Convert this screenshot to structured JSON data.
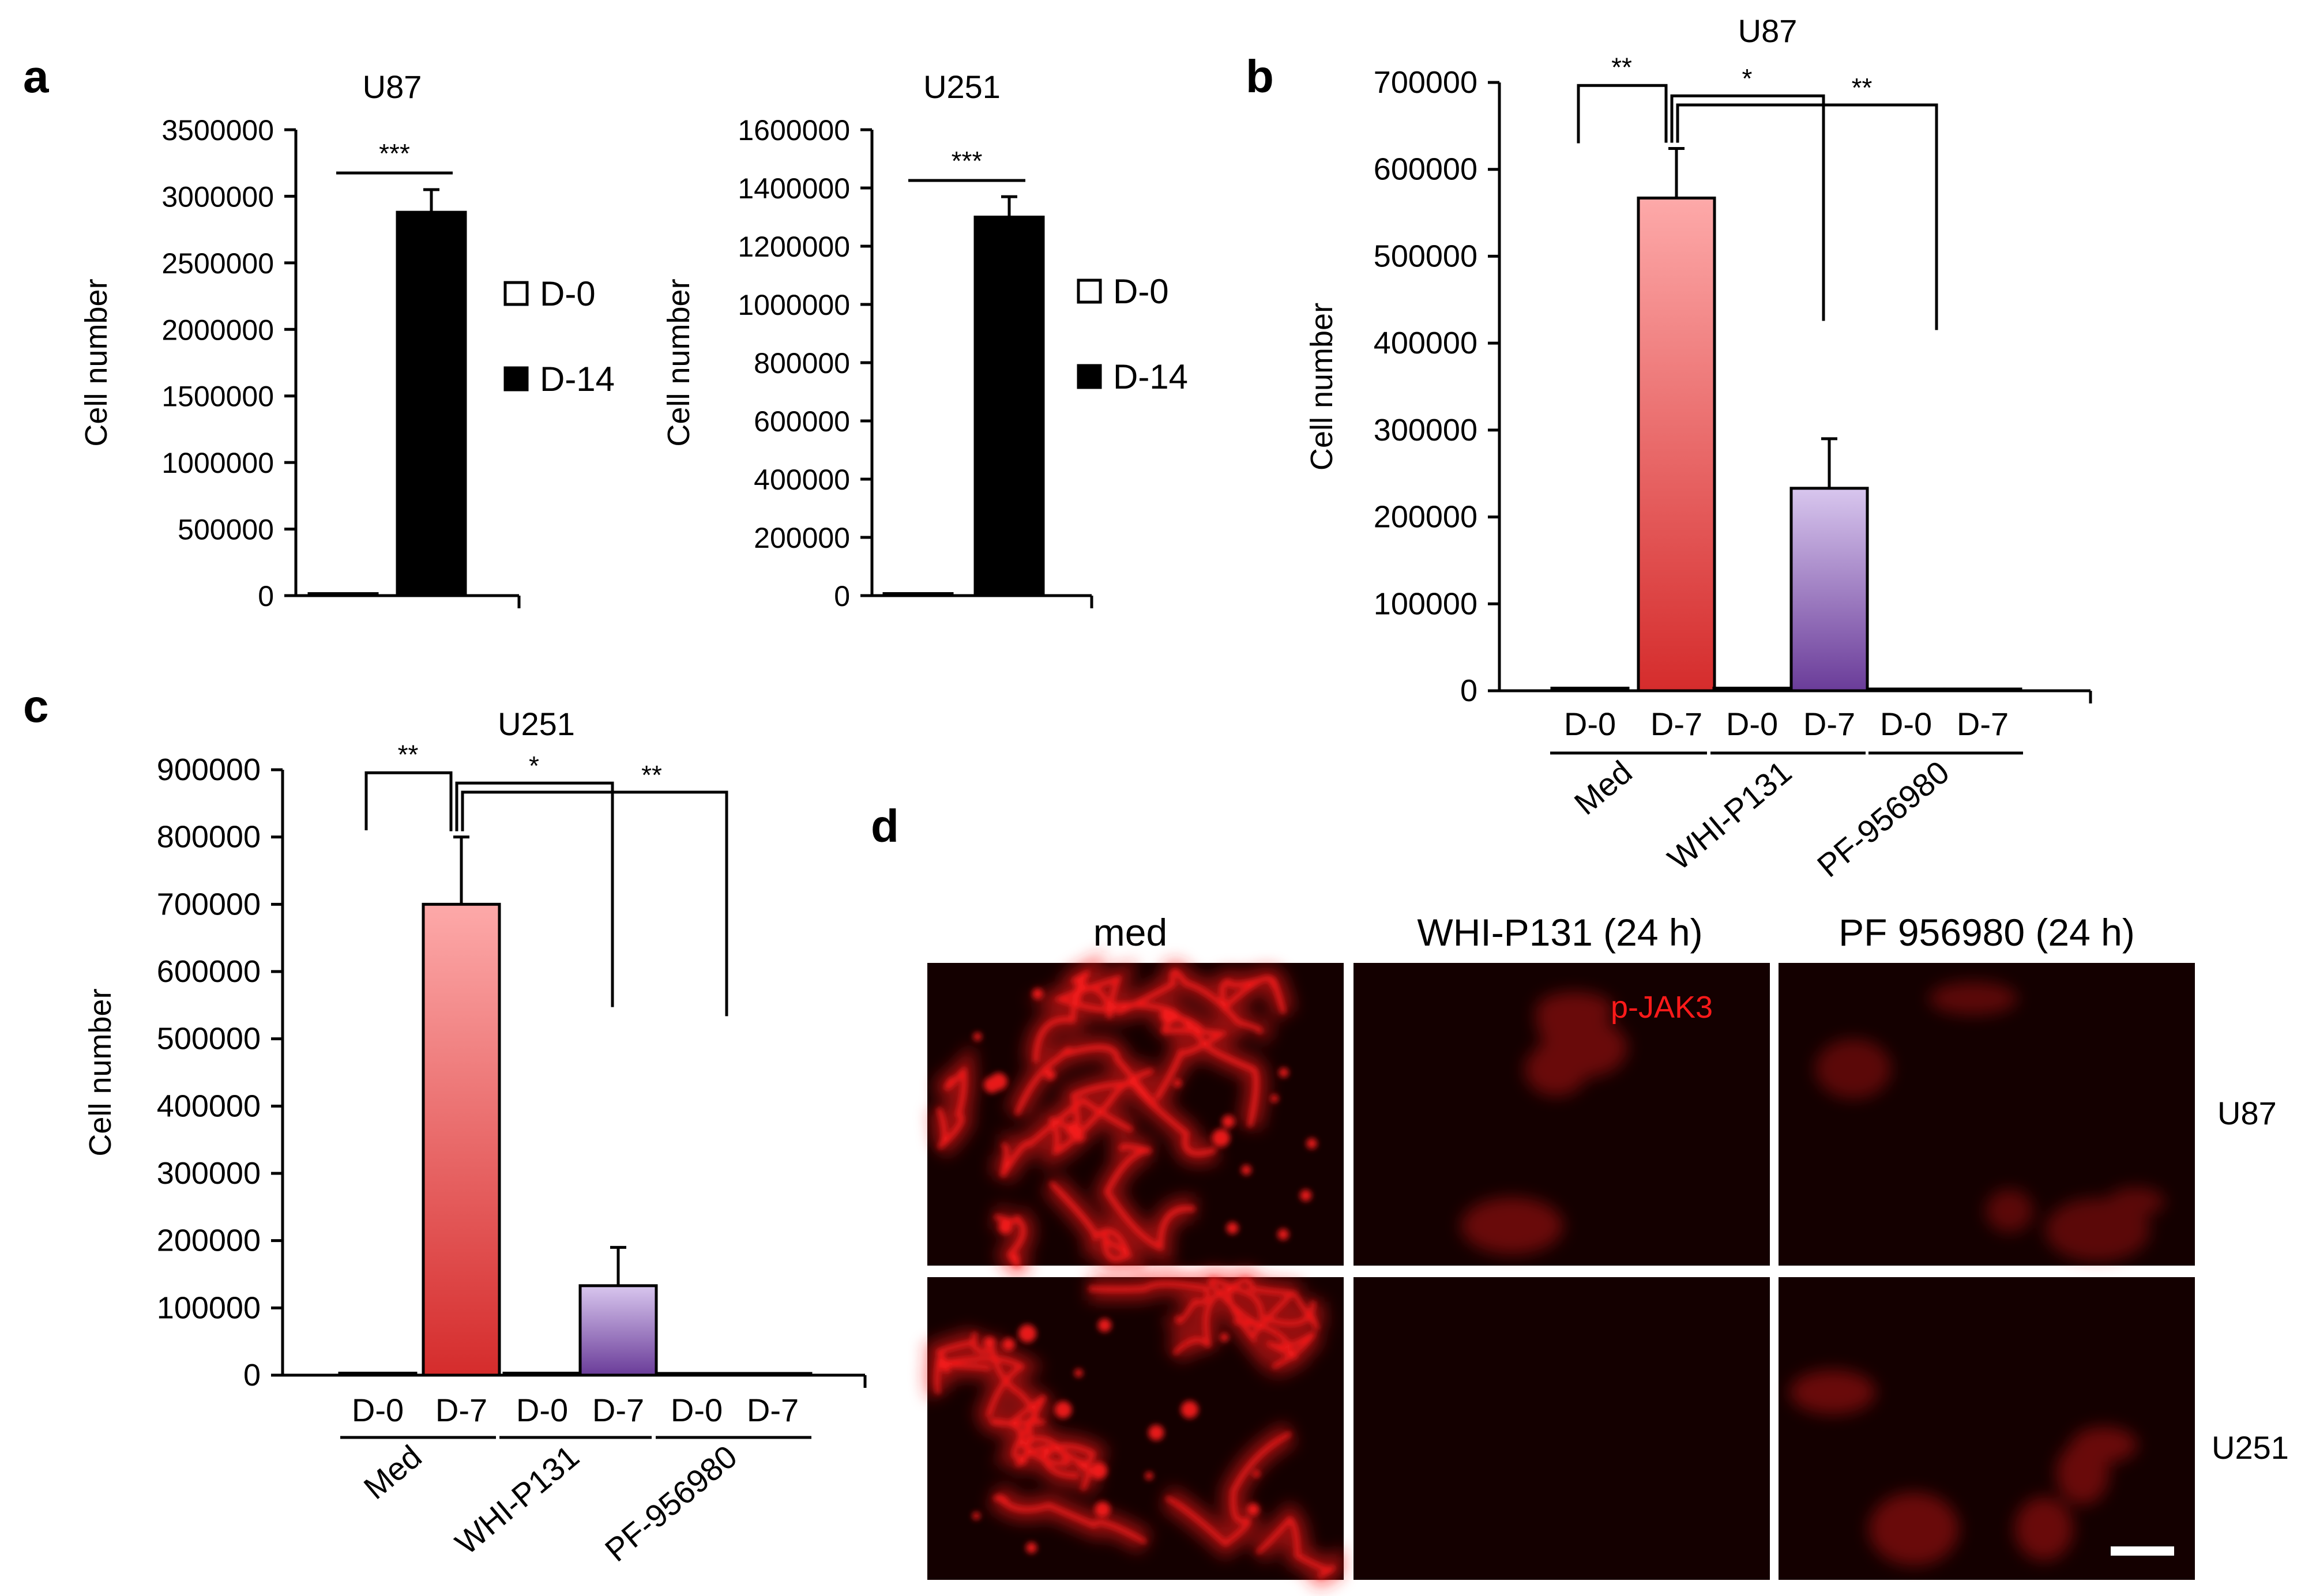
{
  "panel_letters": [
    "a",
    "b",
    "c",
    "d"
  ],
  "colors": {
    "axis": "#000000",
    "bar_black": "#000000",
    "med_top": "#fda9a9",
    "med_bottom": "#d52c2c",
    "whi_top": "#d8c6ee",
    "whi_bottom": "#6a3c99",
    "micro_bg": "#140000",
    "micro_signal": "#ff1a1a",
    "overlay_label": "#ff1a1a"
  },
  "chart_data": [
    {
      "id": "a1",
      "type": "bar",
      "title": "U87",
      "ylabel": "Cell number",
      "xlabel": "",
      "ylim": [
        0,
        3500000
      ],
      "yticks": [
        0,
        500000,
        1000000,
        1500000,
        2000000,
        2500000,
        3000000,
        3500000
      ],
      "ytick_labels": [
        "0",
        "500000",
        "1000000",
        "1500000",
        "2000000",
        "2500000",
        "3000000",
        "3500000"
      ],
      "categories": [
        "D-0",
        "D-14"
      ],
      "values": [
        15000,
        2880000
      ],
      "errors": [
        0,
        170000
      ],
      "legend": [
        "D-0",
        "D-14"
      ],
      "legend_position": "right",
      "significance": [
        {
          "from": 0,
          "to": 1,
          "label": "***"
        }
      ]
    },
    {
      "id": "a2",
      "type": "bar",
      "title": "U251",
      "ylabel": "Cell number",
      "xlabel": "",
      "ylim": [
        0,
        1600000
      ],
      "yticks": [
        0,
        200000,
        400000,
        600000,
        800000,
        1000000,
        1200000,
        1400000,
        1600000
      ],
      "ytick_labels": [
        "0",
        "200000",
        "400000",
        "600000",
        "800000",
        "1000000",
        "1200000",
        "1400000",
        "1600000"
      ],
      "categories": [
        "D-0",
        "D-14"
      ],
      "values": [
        7000,
        1300000
      ],
      "errors": [
        0,
        70000
      ],
      "legend": [
        "D-0",
        "D-14"
      ],
      "legend_position": "right",
      "significance": [
        {
          "from": 0,
          "to": 1,
          "label": "***"
        }
      ]
    },
    {
      "id": "b",
      "type": "bar",
      "title": "U87",
      "ylabel": "Cell number",
      "xlabel": "",
      "ylim": [
        0,
        700000
      ],
      "yticks": [
        0,
        100000,
        200000,
        300000,
        400000,
        500000,
        600000,
        700000
      ],
      "ytick_labels": [
        "0",
        "100000",
        "200000",
        "300000",
        "400000",
        "500000",
        "600000",
        "700000"
      ],
      "categories": [
        "D-0",
        "D-7",
        "D-0",
        "D-7",
        "D-0",
        "D-7"
      ],
      "groups": [
        "Med",
        "WHI-P131",
        "PF-956980"
      ],
      "values": [
        3000,
        567000,
        3000,
        233000,
        2000,
        2000
      ],
      "errors": [
        0,
        57000,
        0,
        57000,
        0,
        0
      ],
      "fills": [
        "none",
        "med",
        "none",
        "whi",
        "none",
        "none"
      ],
      "significance": [
        {
          "label": "**",
          "from": 0,
          "to": 1
        },
        {
          "label": "*",
          "from": 1,
          "to": 3
        },
        {
          "label": "**",
          "from": 1,
          "to": 5
        }
      ]
    },
    {
      "id": "c",
      "type": "bar",
      "title": "U251",
      "ylabel": "Cell number",
      "xlabel": "",
      "ylim": [
        0,
        900000
      ],
      "yticks": [
        0,
        100000,
        200000,
        300000,
        400000,
        500000,
        600000,
        700000,
        800000,
        900000
      ],
      "ytick_labels": [
        "0",
        "100000",
        "200000",
        "300000",
        "400000",
        "500000",
        "600000",
        "700000",
        "800000",
        "900000"
      ],
      "categories": [
        "D-0",
        "D-7",
        "D-0",
        "D-7",
        "D-0",
        "D-7"
      ],
      "groups": [
        "Med",
        "WHI-P131",
        "PF-956980"
      ],
      "values": [
        3000,
        700000,
        3000,
        133000,
        2000,
        2000
      ],
      "errors": [
        0,
        100000,
        0,
        57000,
        0,
        0
      ],
      "fills": [
        "none",
        "med",
        "none",
        "whi",
        "none",
        "none"
      ],
      "significance": [
        {
          "label": "**",
          "from": 0,
          "to": 1
        },
        {
          "label": "*",
          "from": 1,
          "to": 3
        },
        {
          "label": "**",
          "from": 1,
          "to": 5
        }
      ]
    }
  ],
  "microscopy": {
    "columns": [
      "med",
      "WHI-P131 (24 h)",
      "PF 956980 (24 h)"
    ],
    "rows": [
      "U87",
      "U251"
    ],
    "overlay_label": "p-JAK3",
    "intensity": [
      [
        0.9,
        0.12,
        0.1
      ],
      [
        0.8,
        0.0,
        0.12
      ]
    ]
  }
}
